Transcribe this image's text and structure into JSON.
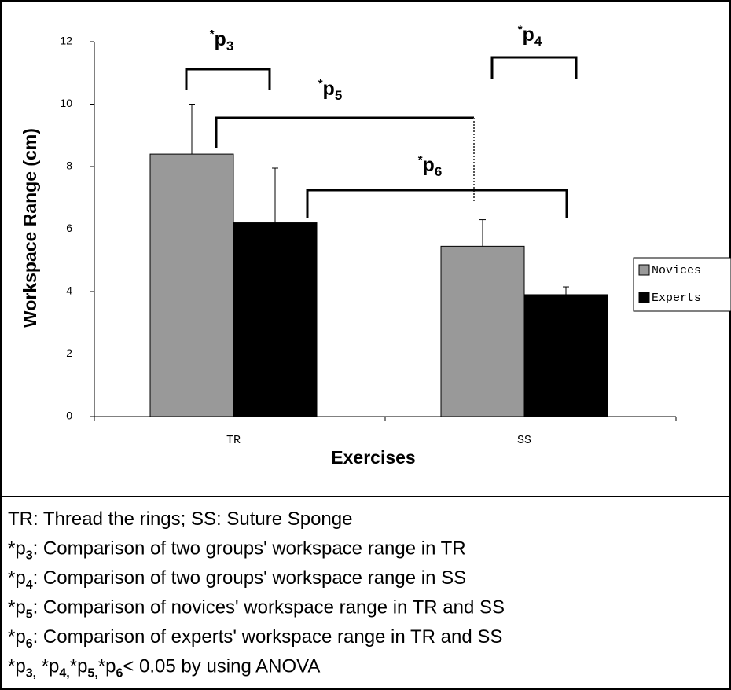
{
  "chart_data": {
    "type": "bar",
    "x_label": "Exercises",
    "y_label": "Workspace Range (cm)",
    "categories": [
      "TR",
      "SS"
    ],
    "series": [
      {
        "name": "Novices",
        "color": "#999999",
        "values": [
          8.4,
          5.45
        ],
        "errors": [
          1.6,
          0.85
        ]
      },
      {
        "name": "Experts",
        "color": "#000000",
        "values": [
          6.2,
          3.9
        ],
        "errors": [
          1.75,
          0.25
        ]
      }
    ],
    "ylim": [
      0,
      12
    ],
    "yticks": [
      0,
      2,
      4,
      6,
      8,
      10,
      12
    ],
    "legend": "right",
    "annotations": [
      {
        "mark": "*",
        "text": "p",
        "sub": "3"
      },
      {
        "mark": "*",
        "text": "p",
        "sub": "4"
      },
      {
        "mark": "*",
        "text": "p",
        "sub": "5"
      },
      {
        "mark": "*",
        "text": "p",
        "sub": "6"
      }
    ]
  },
  "caption": {
    "lines": [
      [
        {
          "text": "TR: Thread the rings; SS: Suture Sponge"
        }
      ],
      [
        {
          "text": "*p"
        },
        {
          "text": "3",
          "sub": true
        },
        {
          "text": ":  Comparison of two groups' workspace range in TR"
        }
      ],
      [
        {
          "text": "*p"
        },
        {
          "text": "4",
          "sub": true
        },
        {
          "text": ":  Comparison of two groups'  workspace range in SS"
        }
      ],
      [
        {
          "text": "*p"
        },
        {
          "text": "5",
          "sub": true
        },
        {
          "text": ":  Comparison of novices' workspace range in TR and SS"
        }
      ],
      [
        {
          "text": "*p"
        },
        {
          "text": "6",
          "sub": true
        },
        {
          "text": ":  Comparison of experts' workspace range in TR and SS"
        }
      ],
      [
        {
          "text": "*p"
        },
        {
          "text": "3,",
          "sub": true
        },
        {
          "text": " *p"
        },
        {
          "text": "4,",
          "sub": true
        },
        {
          "text": "*p"
        },
        {
          "text": "5,",
          "sub": true
        },
        {
          "text": "*p"
        },
        {
          "text": "6",
          "sub": true
        },
        {
          "text": "< 0.05 by using ANOVA"
        }
      ]
    ]
  }
}
